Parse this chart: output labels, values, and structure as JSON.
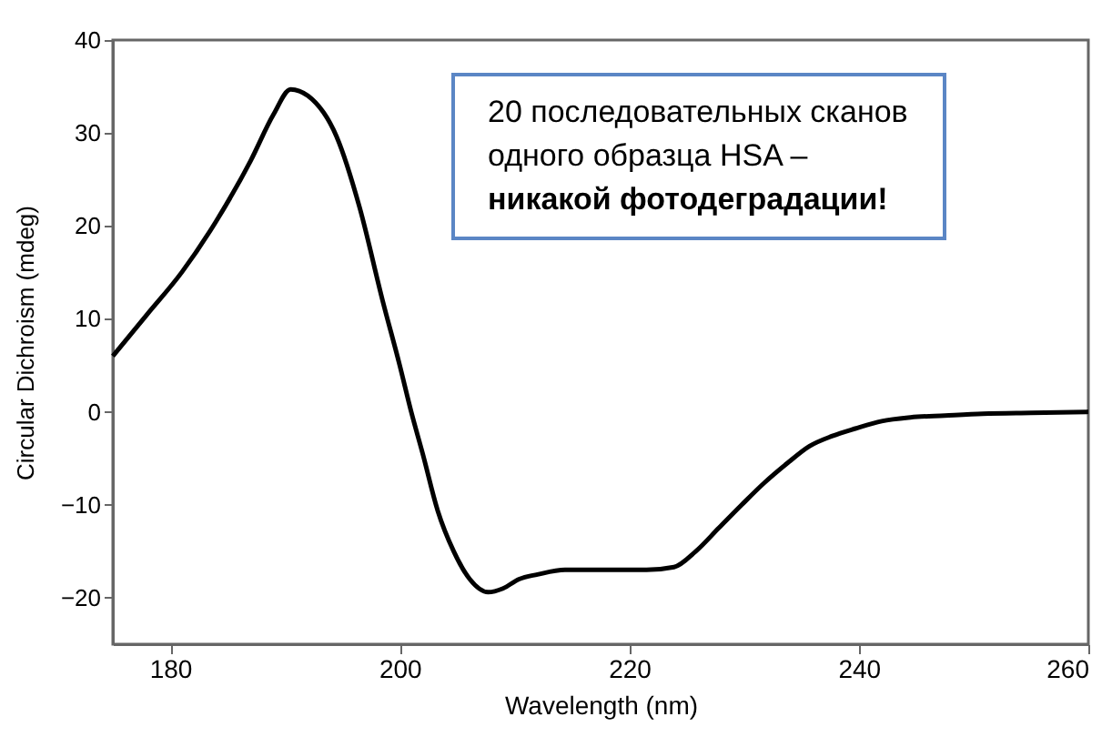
{
  "chart_data": {
    "type": "line",
    "xlabel": "Wavelength (nm)",
    "ylabel": "Circular Dichroism (mdeg)",
    "annotations": [
      "20 последовательных сканов одного образца HSA –",
      "никакой фотодеградации!"
    ],
    "x": [
      175,
      178,
      181,
      184,
      187,
      189,
      190.5,
      192,
      194.5,
      196.5,
      198.5,
      200,
      201,
      202,
      203.3,
      204.7,
      206.1,
      207.7,
      209,
      210.4,
      212,
      214.4,
      217,
      219,
      221.5,
      223.9,
      225.8,
      227.8,
      229.8,
      231.8,
      233.8,
      235.7,
      237.7,
      239.7,
      242,
      244.5,
      247.5,
      250.8,
      255,
      260
    ],
    "series": [
      {
        "color": "#000000",
        "values": [
          6,
          10.5,
          15,
          20.5,
          27,
          32,
          34.7,
          34,
          29.6,
          22,
          12,
          5,
          0,
          -4.5,
          -10.6,
          -15,
          -18,
          -19.4,
          -19,
          -18,
          -17.5,
          -17,
          -17,
          -17,
          -17,
          -16.7,
          -15,
          -12.5,
          -10,
          -7.6,
          -5.5,
          -3.7,
          -2.6,
          -1.8,
          -1,
          -0.6,
          -0.4,
          -0.2,
          -0.1,
          0
        ]
      }
    ],
    "xlim": [
      175,
      260
    ],
    "xticks": [
      180,
      200,
      220,
      240,
      260
    ],
    "ylim": [
      -25,
      40
    ],
    "yticks": [
      -20,
      -10,
      0,
      10,
      20,
      30,
      40
    ],
    "grid": false,
    "legend": false
  }
}
